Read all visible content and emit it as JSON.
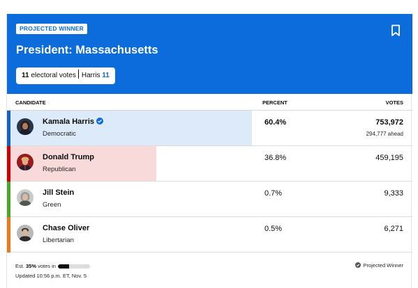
{
  "header": {
    "badge": "PROJECTED WINNER",
    "title": "President: Massachusetts",
    "electoral_pill": {
      "count": "11",
      "label": " electoral votes",
      "winner_name": "Harris ",
      "winner_votes": "11"
    },
    "colors": {
      "background": "#0c6cdc"
    }
  },
  "columns": {
    "candidate": "CANDIDATE",
    "percent": "PERCENT",
    "votes": "VOTES"
  },
  "candidates": [
    {
      "name": "Kamala Harris",
      "party": "Democratic",
      "percent": "60.4%",
      "votes": "753,972",
      "ahead": "294,777 ahead",
      "winner": true,
      "share": 0.604,
      "stripe_color": "#1662c5",
      "fill_color": "#dceafa",
      "avatar_icon": "kamala-harris-photo"
    },
    {
      "name": "Donald Trump",
      "party": "Republican",
      "percent": "36.8%",
      "votes": "459,195",
      "winner": false,
      "share": 0.368,
      "stripe_color": "#cc0000",
      "fill_color": "#f9dadb",
      "avatar_icon": "donald-trump-photo"
    },
    {
      "name": "Jill Stein",
      "party": "Green",
      "percent": "0.7%",
      "votes": "9,333",
      "winner": false,
      "share": 0.007,
      "stripe_color": "#4aa72e",
      "fill_color": "#e3f2dd",
      "avatar_icon": "jill-stein-photo"
    },
    {
      "name": "Chase Oliver",
      "party": "Libertarian",
      "percent": "0.5%",
      "votes": "6,271",
      "winner": false,
      "share": 0.005,
      "stripe_color": "#ec7a1b",
      "fill_color": "#fde9d6",
      "avatar_icon": "chase-oliver-photo"
    }
  ],
  "footer": {
    "est_prefix": "Est. ",
    "est_value": "35%",
    "est_suffix": " votes in",
    "reporting_share": 0.35,
    "updated": "Updated 10:56 p.m. ET, Nov. 5",
    "legend_label": "Projected Winner"
  }
}
